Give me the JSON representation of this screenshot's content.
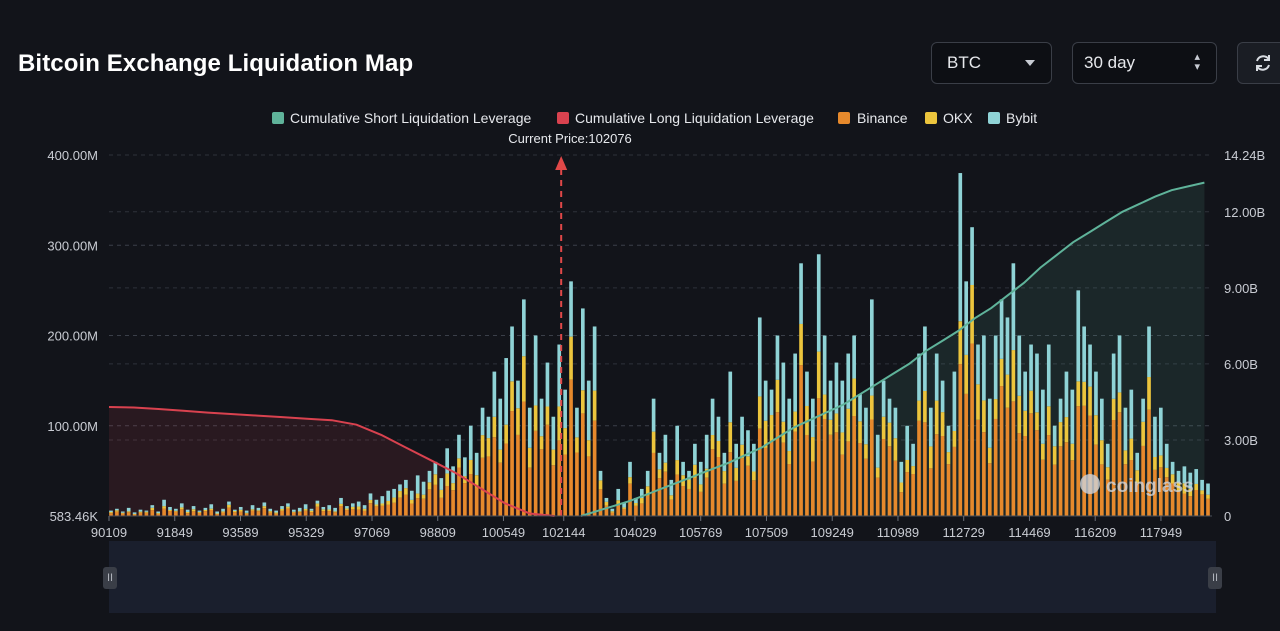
{
  "header": {
    "title": "Bitcoin Exchange Liquidation Map",
    "coin_select": "BTC",
    "range_select": "30 day",
    "refresh_icon": "refresh-icon"
  },
  "brush": {
    "left_handle": "II",
    "right_handle": "II"
  },
  "watermark": "coinglass",
  "chart_data": {
    "type": "bar",
    "stacked": true,
    "legend": [
      "Cumulative Short Liquidation Leverage",
      "Cumulative Long Liquidation Leverage",
      "Binance",
      "OKX",
      "Bybit"
    ],
    "legend_position": "top-center",
    "colors": {
      "short": "#5fb39a",
      "long": "#d9424f",
      "binance": "#e6892c",
      "okx": "#ecc53d",
      "bybit": "#8fd3d6"
    },
    "current_price_label": "Current Price:102076",
    "current_price": 102076,
    "x_tick_labels": [
      "90109",
      "91849",
      "93589",
      "95329",
      "97069",
      "98809",
      "100549",
      "102144",
      "104029",
      "105769",
      "107509",
      "109249",
      "110989",
      "112729",
      "114469",
      "116209",
      "117949"
    ],
    "x_range": [
      90109,
      119300
    ],
    "y_left": {
      "tick_labels": [
        "583.46K",
        "100.00M",
        "200.00M",
        "300.00M",
        "400.00M"
      ],
      "ticks": [
        0,
        100,
        200,
        300,
        400
      ],
      "range": [
        0,
        400
      ],
      "unit": "M"
    },
    "y_right": {
      "tick_labels": [
        "0",
        "3.00B",
        "6.00B",
        "9.00B",
        "12.00B",
        "14.24B"
      ],
      "ticks": [
        0,
        3,
        6,
        9,
        12,
        14.24
      ],
      "range": [
        0,
        14.24
      ],
      "unit": "B"
    },
    "bar_totals": [
      6,
      8,
      5,
      9,
      4,
      7,
      6,
      12,
      5,
      18,
      10,
      8,
      14,
      7,
      11,
      6,
      9,
      13,
      5,
      8,
      16,
      7,
      10,
      6,
      12,
      9,
      15,
      8,
      6,
      11,
      14,
      7,
      9,
      13,
      8,
      17,
      10,
      12,
      9,
      20,
      11,
      14,
      16,
      12,
      25,
      18,
      22,
      28,
      30,
      35,
      40,
      28,
      45,
      38,
      50,
      60,
      42,
      75,
      55,
      90,
      65,
      100,
      70,
      120,
      110,
      160,
      130,
      175,
      210,
      150,
      240,
      120,
      200,
      130,
      170,
      110,
      190,
      140,
      260,
      120,
      230,
      150,
      210,
      50,
      20,
      8,
      30,
      15,
      60,
      20,
      30,
      50,
      130,
      70,
      90,
      40,
      100,
      60,
      50,
      80,
      60,
      90,
      130,
      110,
      70,
      160,
      80,
      110,
      95,
      80,
      220,
      150,
      140,
      200,
      170,
      130,
      180,
      280,
      160,
      130,
      290,
      200,
      150,
      170,
      150,
      180,
      200,
      135,
      120,
      240,
      90,
      150,
      130,
      120,
      60,
      100,
      80,
      180,
      210,
      120,
      180,
      150,
      100,
      160,
      380,
      260,
      320,
      190,
      200,
      130,
      200,
      240,
      220,
      280,
      200,
      160,
      190,
      180,
      140,
      190,
      100,
      130,
      160,
      140,
      250,
      210,
      190,
      160,
      130,
      80,
      180,
      200,
      120,
      140,
      70,
      130,
      210,
      110,
      120,
      80,
      60,
      50,
      55,
      48,
      52,
      40,
      36
    ],
    "short_cumulative_B": [
      0,
      0.2,
      0.4,
      0.6,
      0.85,
      1.1,
      1.35,
      1.6,
      1.85,
      2.1,
      2.4,
      2.7,
      3.1,
      3.5,
      3.8,
      4.1,
      4.4,
      4.8,
      5.2,
      5.6,
      6.0,
      6.5,
      6.9,
      7.3,
      7.8,
      8.2,
      8.7,
      9.2,
      9.8,
      10.3,
      10.8,
      11.2,
      11.6,
      12.0,
      12.3,
      12.6,
      12.85,
      13.0,
      13.15
    ],
    "long_cumulative_B": [
      4.3,
      4.28,
      4.22,
      4.15,
      4.08,
      4.02,
      3.96,
      3.9,
      3.84,
      3.78,
      3.6,
      3.2,
      2.7,
      2.2,
      1.7,
      1.1,
      0.5,
      0.1,
      0
    ]
  }
}
